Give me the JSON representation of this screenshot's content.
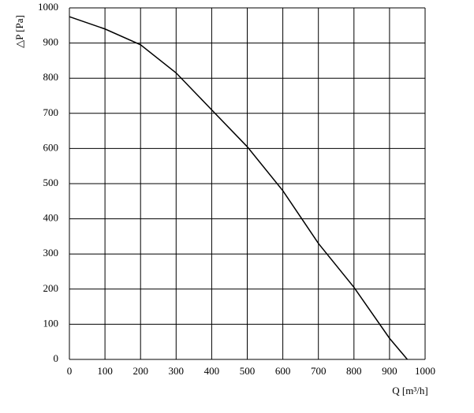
{
  "chart_data": {
    "type": "line",
    "x_label": "Q [m³/h]",
    "y_label": "△P [Pa]",
    "x": [
      0,
      100,
      200,
      300,
      400,
      500,
      600,
      700,
      800,
      900,
      950
    ],
    "series": [
      {
        "color": "#000000",
        "values": [
          975,
          940,
          895,
          815,
          710,
          605,
          480,
          330,
          205,
          60,
          0
        ]
      }
    ],
    "xlim": [
      0,
      1000
    ],
    "xticks": [
      0,
      100,
      200,
      300,
      400,
      500,
      600,
      700,
      800,
      900,
      1000
    ],
    "ylim": [
      0,
      1000
    ],
    "yticks": [
      0,
      100,
      200,
      300,
      400,
      500,
      600,
      700,
      800,
      900,
      1000
    ],
    "grid": true
  }
}
